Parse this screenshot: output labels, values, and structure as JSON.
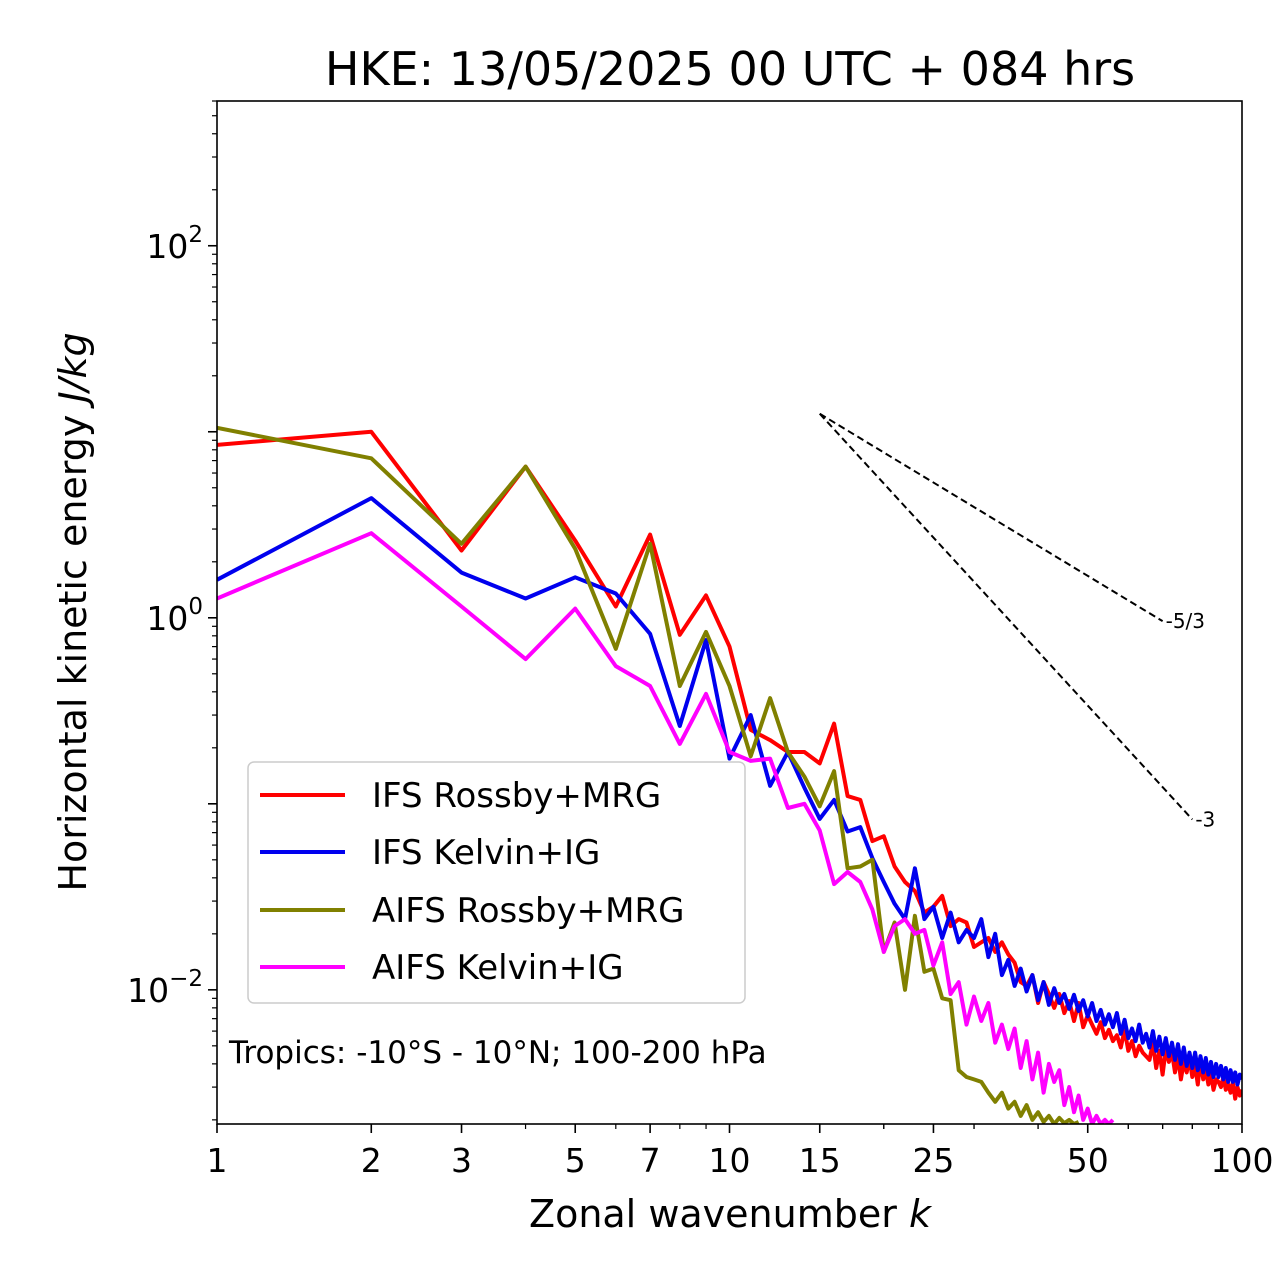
{
  "chart_data": {
    "type": "line",
    "title": "HKE: 13/05/2025 00 UTC + 084 hrs",
    "xlabel": "Zonal wavenumber",
    "xlabel_var": "k",
    "ylabel": "Horizontal kinetic energy",
    "ylabel_unit": "J/kg",
    "xscale": "log",
    "yscale": "log",
    "xlim": [
      1,
      100
    ],
    "ylim": [
      0.0019,
      600
    ],
    "x_ticks": [
      {
        "value": 1,
        "label": "1"
      },
      {
        "value": 2,
        "label": "2"
      },
      {
        "value": 3,
        "label": "3"
      },
      {
        "value": 5,
        "label": "5"
      },
      {
        "value": 7,
        "label": "7"
      },
      {
        "value": 10,
        "label": "10"
      },
      {
        "value": 15,
        "label": "15"
      },
      {
        "value": 25,
        "label": "25"
      },
      {
        "value": 50,
        "label": "50"
      },
      {
        "value": 100,
        "label": "100"
      }
    ],
    "y_ticks": [
      {
        "value": 100,
        "base": "10",
        "exp": "2"
      },
      {
        "value": 1,
        "base": "10",
        "exp": "0"
      },
      {
        "value": 0.01,
        "base": "10",
        "exp": "−2"
      }
    ],
    "legend_position": "lower-left",
    "annotation": "Tropics: -10°S - 10°N; 100-200 hPa",
    "reference_slopes": [
      {
        "label": "-5/3",
        "slope": -1.6667,
        "x": [
          15,
          70
        ],
        "y0": 12.5
      },
      {
        "label": "-3",
        "slope": -3,
        "x": [
          15,
          80
        ],
        "y0": 12.5
      }
    ],
    "series": [
      {
        "name": "IFS Rossby+MRG",
        "color": "#ff0000",
        "x": [
          1,
          2,
          3,
          4,
          5,
          6,
          7,
          8,
          9,
          10,
          11,
          12,
          13,
          14,
          15,
          16,
          17,
          18,
          19,
          20,
          21,
          22,
          23,
          24,
          25,
          26,
          27,
          28,
          29,
          30,
          31,
          32,
          33,
          34,
          35,
          36,
          37,
          38,
          39,
          40,
          41,
          42,
          43,
          44,
          45,
          46,
          47,
          48,
          49,
          50,
          51,
          52,
          53,
          54,
          55,
          56,
          57,
          58,
          59,
          60,
          61,
          62,
          63,
          64,
          65,
          66,
          67,
          68,
          69,
          70,
          71,
          72,
          73,
          74,
          75,
          76,
          77,
          78,
          79,
          80,
          81,
          82,
          83,
          84,
          85,
          86,
          87,
          88,
          89,
          90,
          91,
          92,
          93,
          94,
          95,
          96,
          97,
          98,
          99,
          100
        ],
        "y": [
          8.5,
          10,
          2.3,
          6.5,
          2.6,
          1.15,
          2.8,
          0.81,
          1.32,
          0.7,
          0.25,
          0.22,
          0.19,
          0.19,
          0.165,
          0.27,
          0.11,
          0.105,
          0.063,
          0.067,
          0.046,
          0.038,
          0.034,
          0.026,
          0.028,
          0.032,
          0.022,
          0.024,
          0.023,
          0.017,
          0.018,
          0.019,
          0.016,
          0.018,
          0.0155,
          0.014,
          0.011,
          0.0105,
          0.012,
          0.0085,
          0.011,
          0.0095,
          0.008,
          0.0095,
          0.0075,
          0.0087,
          0.0068,
          0.0085,
          0.0063,
          0.0073,
          0.0065,
          0.0058,
          0.0067,
          0.0055,
          0.0061,
          0.0053,
          0.0057,
          0.0049,
          0.0061,
          0.0047,
          0.0053,
          0.0044,
          0.005,
          0.0046,
          0.0044,
          0.0042,
          0.0052,
          0.0038,
          0.0047,
          0.0035,
          0.0048,
          0.0041,
          0.0046,
          0.0036,
          0.0044,
          0.0033,
          0.0041,
          0.0036,
          0.0043,
          0.0034,
          0.0039,
          0.0031,
          0.0042,
          0.0033,
          0.0037,
          0.0031,
          0.0035,
          0.0029,
          0.0033,
          0.0032,
          0.003,
          0.0034,
          0.0029,
          0.0031,
          0.0028,
          0.0032,
          0.0026,
          0.003,
          0.0027,
          0.0029
        ]
      },
      {
        "name": "IFS Kelvin+IG",
        "color": "#0000ee",
        "x": [
          1,
          2,
          3,
          4,
          5,
          6,
          7,
          8,
          9,
          10,
          11,
          12,
          13,
          14,
          15,
          16,
          17,
          18,
          19,
          20,
          21,
          22,
          23,
          24,
          25,
          26,
          27,
          28,
          29,
          30,
          31,
          32,
          33,
          34,
          35,
          36,
          37,
          38,
          39,
          40,
          41,
          42,
          43,
          44,
          45,
          46,
          47,
          48,
          49,
          50,
          51,
          52,
          53,
          54,
          55,
          56,
          57,
          58,
          59,
          60,
          61,
          62,
          63,
          64,
          65,
          66,
          67,
          68,
          69,
          70,
          71,
          72,
          73,
          74,
          75,
          76,
          77,
          78,
          79,
          80,
          81,
          82,
          83,
          84,
          85,
          86,
          87,
          88,
          89,
          90,
          91,
          92,
          93,
          94,
          95,
          96,
          97,
          98,
          99,
          100
        ],
        "y": [
          1.6,
          4.4,
          1.75,
          1.27,
          1.65,
          1.35,
          0.82,
          0.262,
          0.76,
          0.175,
          0.3,
          0.125,
          0.19,
          0.122,
          0.083,
          0.105,
          0.071,
          0.075,
          0.051,
          0.038,
          0.029,
          0.024,
          0.045,
          0.024,
          0.028,
          0.019,
          0.026,
          0.018,
          0.021,
          0.019,
          0.024,
          0.015,
          0.02,
          0.012,
          0.0145,
          0.0105,
          0.013,
          0.0098,
          0.012,
          0.0088,
          0.011,
          0.0083,
          0.0102,
          0.0085,
          0.0095,
          0.0079,
          0.0094,
          0.0077,
          0.0088,
          0.0072,
          0.0085,
          0.0068,
          0.0078,
          0.0065,
          0.0074,
          0.0063,
          0.0075,
          0.0058,
          0.0069,
          0.0055,
          0.0062,
          0.0053,
          0.0065,
          0.0052,
          0.0058,
          0.0049,
          0.006,
          0.0047,
          0.0056,
          0.0045,
          0.0055,
          0.0044,
          0.0052,
          0.0042,
          0.0051,
          0.004,
          0.0049,
          0.0039,
          0.0046,
          0.0038,
          0.0046,
          0.0037,
          0.0044,
          0.0036,
          0.0043,
          0.0035,
          0.0041,
          0.0034,
          0.004,
          0.0034,
          0.0039,
          0.0033,
          0.0038,
          0.0032,
          0.0037,
          0.0032,
          0.0036,
          0.0031,
          0.0035,
          0.0033
        ]
      },
      {
        "name": "AIFS Rossby+MRG",
        "color": "#808000",
        "x": [
          1,
          2,
          3,
          4,
          5,
          6,
          7,
          8,
          9,
          10,
          11,
          12,
          13,
          14,
          15,
          16,
          17,
          18,
          19,
          20,
          21,
          22,
          23,
          24,
          25,
          26,
          27,
          28,
          29,
          30,
          31,
          32,
          33,
          34,
          35,
          36,
          37,
          38,
          39,
          40,
          41,
          42,
          43,
          44,
          45,
          46,
          47,
          48
        ],
        "y": [
          10.5,
          7.2,
          2.5,
          6.5,
          2.35,
          0.68,
          2.5,
          0.43,
          0.84,
          0.43,
          0.18,
          0.37,
          0.19,
          0.14,
          0.097,
          0.15,
          0.045,
          0.046,
          0.05,
          0.016,
          0.023,
          0.01,
          0.025,
          0.0125,
          0.013,
          0.009,
          0.0088,
          0.0037,
          0.0034,
          0.0033,
          0.0032,
          0.0028,
          0.0025,
          0.0028,
          0.0023,
          0.0025,
          0.0021,
          0.0024,
          0.002,
          0.0022,
          0.00195,
          0.0021,
          0.0019,
          0.00205,
          0.00192,
          0.002,
          0.0019,
          0.00195
        ]
      },
      {
        "name": "AIFS Kelvin+IG",
        "color": "#ff00ff",
        "x": [
          1,
          2,
          3,
          4,
          5,
          6,
          7,
          8,
          9,
          10,
          11,
          12,
          13,
          14,
          15,
          16,
          17,
          18,
          19,
          20,
          21,
          22,
          23,
          24,
          25,
          26,
          27,
          28,
          29,
          30,
          31,
          32,
          33,
          34,
          35,
          36,
          37,
          38,
          39,
          40,
          41,
          42,
          43,
          44,
          45,
          46,
          47,
          48,
          49,
          50,
          51,
          52,
          53,
          54,
          55,
          56
        ],
        "y": [
          1.27,
          2.85,
          1.15,
          0.6,
          1.12,
          0.55,
          0.43,
          0.21,
          0.39,
          0.19,
          0.17,
          0.175,
          0.095,
          0.1,
          0.072,
          0.037,
          0.043,
          0.038,
          0.027,
          0.016,
          0.022,
          0.024,
          0.02,
          0.021,
          0.0135,
          0.018,
          0.0095,
          0.011,
          0.0065,
          0.0092,
          0.0068,
          0.0085,
          0.0052,
          0.0065,
          0.0048,
          0.0062,
          0.0038,
          0.0053,
          0.0033,
          0.0046,
          0.0028,
          0.004,
          0.0032,
          0.0037,
          0.0024,
          0.003,
          0.0022,
          0.0027,
          0.002,
          0.0023,
          0.0019,
          0.0021,
          0.0019,
          0.002,
          0.0019,
          0.002
        ]
      }
    ]
  }
}
